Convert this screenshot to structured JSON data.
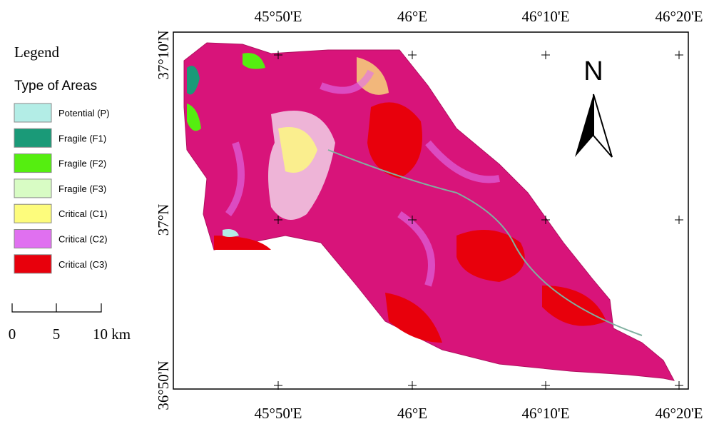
{
  "legend": {
    "title": "Legend",
    "subtitle": "Type of Areas",
    "items": [
      {
        "label": "Potential (P)",
        "color": "#b3ede6"
      },
      {
        "label": "Fragile (F1)",
        "color": "#1a9a78"
      },
      {
        "label": "Fragile (F2)",
        "color": "#55ee10"
      },
      {
        "label": "Fragile (F3)",
        "color": "#d8fcc4"
      },
      {
        "label": "Critical (C1)",
        "color": "#fdfc7c"
      },
      {
        "label": "Critical (C2)",
        "color": "#e070f0"
      },
      {
        "label": "Critical (C3)",
        "color": "#e8000c"
      }
    ]
  },
  "scale_bar": {
    "labels": [
      "0",
      "5",
      "10 km"
    ]
  },
  "map": {
    "north": "N",
    "top_labels": [
      "45°50'E",
      "46°E",
      "46°10'E",
      "46°20'E"
    ],
    "bottom_labels": [
      "45°50'E",
      "46°E",
      "46°10'E",
      "46°20'E"
    ],
    "left_labels": [
      "37°10'N",
      "37°N",
      "36°50'N"
    ]
  }
}
